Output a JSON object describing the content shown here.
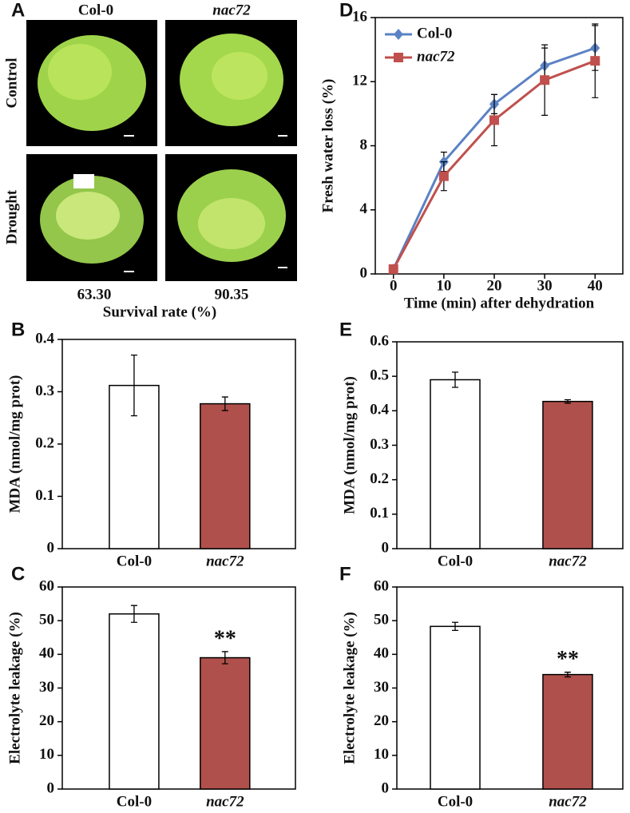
{
  "panel_a": {
    "label": "A",
    "columns": [
      "Col-0",
      "nac72"
    ],
    "rows": [
      "Control",
      "Drought"
    ],
    "survival_rates": [
      "63.30",
      "90.35"
    ],
    "x_label": "Survival rate (%)"
  },
  "chart_data": [
    {
      "type": "line",
      "label": "D",
      "x_label": "Time (min) after dehydration",
      "y_label": "Fresh water loss (%)",
      "x": [
        0,
        10,
        20,
        30,
        40
      ],
      "xlim": [
        -3.6,
        45.5
      ],
      "xticks": [
        0,
        10,
        20,
        30,
        40
      ],
      "ylim": [
        0,
        16
      ],
      "yticks": [
        0,
        4,
        8,
        12,
        16
      ],
      "legend": "top-left",
      "series": [
        {
          "name": "Col-0",
          "color": "#5b82c4",
          "marker": "diamond",
          "values": [
            0.3,
            7.0,
            10.6,
            13.0,
            14.1
          ],
          "errors": [
            0.1,
            0.6,
            0.6,
            1.1,
            1.4
          ]
        },
        {
          "name": "nac72",
          "color": "#c0504d",
          "marker": "square",
          "values": [
            0.3,
            6.1,
            9.6,
            12.1,
            13.3
          ],
          "errors": [
            0.1,
            0.9,
            1.6,
            2.2,
            2.3
          ]
        }
      ]
    },
    {
      "type": "bar",
      "label": "B",
      "y_label": "MDA (nmol/mg prot)",
      "categories": [
        "Col-0",
        "nac72"
      ],
      "values": [
        0.312,
        0.277
      ],
      "errors": [
        0.058,
        0.013
      ],
      "colors": [
        "#ffffff",
        "#b0504c"
      ],
      "ylim": [
        0,
        0.4
      ],
      "yticks": [
        0,
        0.1,
        0.2,
        0.3,
        0.4
      ]
    },
    {
      "type": "bar",
      "label": "E",
      "y_label": "MDA (nmol/mg prot)",
      "categories": [
        "Col-0",
        "nac72"
      ],
      "values": [
        0.49,
        0.427
      ],
      "errors": [
        0.022,
        0.005
      ],
      "colors": [
        "#ffffff",
        "#b0504c"
      ],
      "ylim": [
        0,
        0.6
      ],
      "yticks": [
        0,
        0.1,
        0.2,
        0.3,
        0.4,
        0.5,
        0.6
      ]
    },
    {
      "type": "bar",
      "label": "C",
      "y_label": "Electrolyte leakage (%)",
      "categories": [
        "Col-0",
        "nac72"
      ],
      "values": [
        52,
        39
      ],
      "errors": [
        2.5,
        1.8
      ],
      "colors": [
        "#ffffff",
        "#b0504c"
      ],
      "value_annotations": [
        null,
        "**"
      ],
      "ylim": [
        0,
        60
      ],
      "yticks": [
        0,
        10,
        20,
        30,
        40,
        50,
        60
      ]
    },
    {
      "type": "bar",
      "label": "F",
      "y_label": "Electrolyte leakage (%)",
      "categories": [
        "Col-0",
        "nac72"
      ],
      "values": [
        48.3,
        34
      ],
      "errors": [
        1.2,
        0.7
      ],
      "colors": [
        "#ffffff",
        "#b0504c"
      ],
      "value_annotations": [
        null,
        "**"
      ],
      "ylim": [
        0,
        60
      ],
      "yticks": [
        0,
        10,
        20,
        30,
        40,
        50,
        60
      ]
    }
  ]
}
